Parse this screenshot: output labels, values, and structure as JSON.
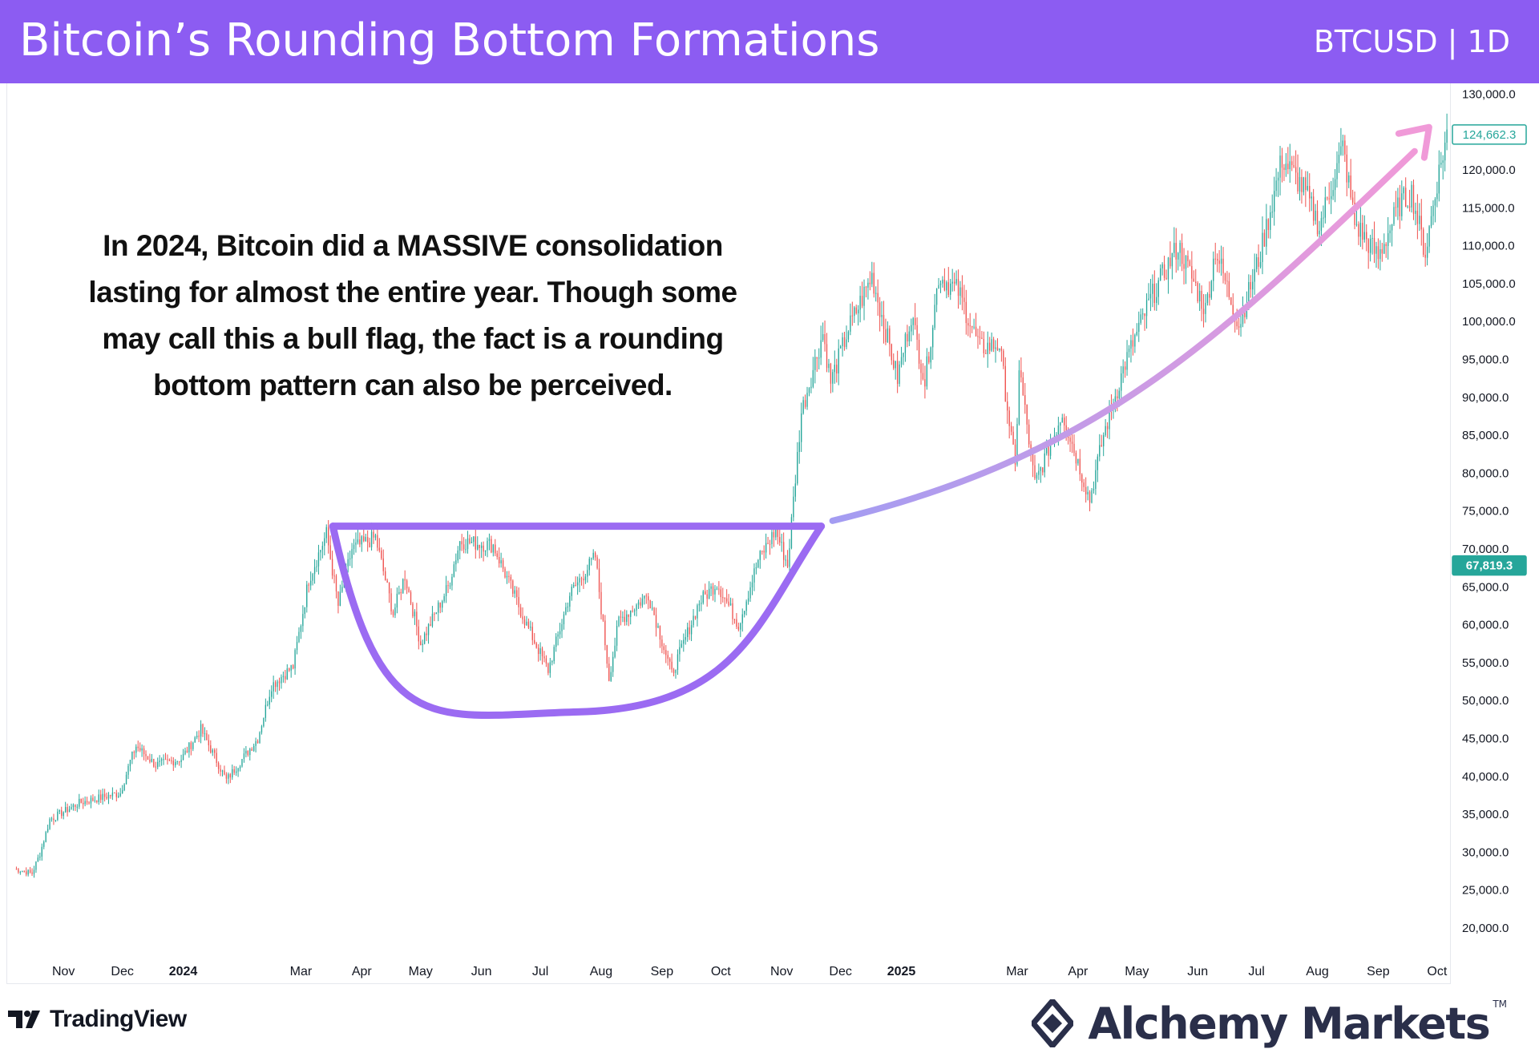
{
  "header": {
    "title": "Bitcoin’s Rounding Bottom Formations",
    "ticker": "BTCUSD | 1D"
  },
  "annotation": {
    "text": "In 2024, Bitcoin did a MASSIVE consolidation lasting for almost the entire year. Though some may call this a bull flag, the fact is a rounding bottom pattern can also be perceived."
  },
  "footer": {
    "tradingview_label": "TradingView",
    "brand_label": "Alchemy Markets",
    "brand_tm": "TM"
  },
  "colors": {
    "header_bg": "#8c5cf2",
    "up_candle": "#26a69a",
    "down_candle": "#ef5350",
    "pattern_line": "#9b6bf2",
    "arrow_start": "#a39cf2",
    "arrow_end": "#f09ad8",
    "current_price_tag": "#26a69a",
    "pattern_price_tag": "#26a69a"
  },
  "chart_data": {
    "type": "candlestick",
    "title": "Bitcoin’s Rounding Bottom Formations",
    "symbol": "BTCUSD",
    "interval": "1D",
    "ylim": [
      17000,
      132000
    ],
    "y_ticks": [
      "130,000.0",
      "120,000.0",
      "115,000.0",
      "110,000.0",
      "105,000.0",
      "100,000.0",
      "95,000.0",
      "90,000.0",
      "85,000.0",
      "80,000.0",
      "75,000.0",
      "70,000.0",
      "65,000.0",
      "60,000.0",
      "55,000.0",
      "50,000.0",
      "45,000.0",
      "40,000.0",
      "35,000.0",
      "30,000.0",
      "25,000.0",
      "20,000.0"
    ],
    "y_tick_values": [
      130000,
      120000,
      115000,
      110000,
      105000,
      100000,
      95000,
      90000,
      85000,
      80000,
      75000,
      70000,
      65000,
      60000,
      55000,
      50000,
      45000,
      40000,
      35000,
      30000,
      25000,
      20000
    ],
    "x_ticks": [
      {
        "label": "Nov",
        "date": "2023-11-01",
        "bold": false
      },
      {
        "label": "Dec",
        "date": "2023-12-01",
        "bold": false
      },
      {
        "label": "2024",
        "date": "2024-01-01",
        "bold": true
      },
      {
        "label": "Mar",
        "date": "2024-03-01",
        "bold": false
      },
      {
        "label": "Apr",
        "date": "2024-04-01",
        "bold": false
      },
      {
        "label": "May",
        "date": "2024-05-01",
        "bold": false
      },
      {
        "label": "Jun",
        "date": "2024-06-01",
        "bold": false
      },
      {
        "label": "Jul",
        "date": "2024-07-01",
        "bold": false
      },
      {
        "label": "Aug",
        "date": "2024-08-01",
        "bold": false
      },
      {
        "label": "Sep",
        "date": "2024-09-01",
        "bold": false
      },
      {
        "label": "Oct",
        "date": "2024-10-01",
        "bold": false
      },
      {
        "label": "Nov",
        "date": "2024-11-01",
        "bold": false
      },
      {
        "label": "Dec",
        "date": "2024-12-01",
        "bold": false
      },
      {
        "label": "2025",
        "date": "2025-01-01",
        "bold": true
      },
      {
        "label": "Mar",
        "date": "2025-03-01",
        "bold": false
      },
      {
        "label": "Apr",
        "date": "2025-04-01",
        "bold": false
      },
      {
        "label": "May",
        "date": "2025-05-01",
        "bold": false
      },
      {
        "label": "Jun",
        "date": "2025-06-01",
        "bold": false
      },
      {
        "label": "Jul",
        "date": "2025-07-01",
        "bold": false
      },
      {
        "label": "Aug",
        "date": "2025-08-01",
        "bold": false
      },
      {
        "label": "Sep",
        "date": "2025-09-01",
        "bold": false
      },
      {
        "label": "Oct",
        "date": "2025-10-01",
        "bold": false
      }
    ],
    "x_range": [
      "2023-10-07",
      "2025-10-08"
    ],
    "price_path": [
      [
        "2023-10-07",
        27800
      ],
      [
        "2023-10-16",
        27200
      ],
      [
        "2023-10-20",
        29800
      ],
      [
        "2023-10-25",
        34300
      ],
      [
        "2023-11-09",
        36500
      ],
      [
        "2023-11-20",
        37200
      ],
      [
        "2023-11-30",
        37800
      ],
      [
        "2023-12-05",
        42000
      ],
      [
        "2023-12-08",
        44000
      ],
      [
        "2023-12-18",
        41500
      ],
      [
        "2023-12-31",
        42300
      ],
      [
        "2024-01-10",
        46200
      ],
      [
        "2024-01-23",
        39500
      ],
      [
        "2024-02-08",
        45000
      ],
      [
        "2024-02-15",
        52000
      ],
      [
        "2024-02-26",
        54500
      ],
      [
        "2024-03-05",
        66000
      ],
      [
        "2024-03-14",
        72000
      ],
      [
        "2024-03-20",
        62500
      ],
      [
        "2024-03-27",
        70000
      ],
      [
        "2024-04-08",
        71500
      ],
      [
        "2024-04-17",
        61500
      ],
      [
        "2024-04-23",
        66500
      ],
      [
        "2024-05-01",
        57500
      ],
      [
        "2024-05-15",
        65000
      ],
      [
        "2024-05-21",
        71000
      ],
      [
        "2024-06-07",
        70500
      ],
      [
        "2024-06-24",
        60000
      ],
      [
        "2024-07-05",
        54000
      ],
      [
        "2024-07-16",
        64000
      ],
      [
        "2024-07-29",
        69000
      ],
      [
        "2024-08-05",
        53000
      ],
      [
        "2024-08-10",
        60500
      ],
      [
        "2024-08-25",
        64000
      ],
      [
        "2024-09-06",
        53500
      ],
      [
        "2024-09-20",
        63000
      ],
      [
        "2024-09-29",
        65500
      ],
      [
        "2024-10-10",
        60000
      ],
      [
        "2024-10-20",
        68500
      ],
      [
        "2024-10-29",
        72500
      ],
      [
        "2024-11-04",
        67800
      ],
      [
        "2024-11-11",
        88000
      ],
      [
        "2024-11-22",
        98500
      ],
      [
        "2024-11-26",
        92000
      ],
      [
        "2024-12-05",
        99000
      ],
      [
        "2024-12-17",
        106000
      ],
      [
        "2024-12-30",
        92500
      ],
      [
        "2025-01-06",
        101000
      ],
      [
        "2025-01-13",
        92000
      ],
      [
        "2025-01-20",
        106000
      ],
      [
        "2025-01-30",
        104000
      ],
      [
        "2025-02-10",
        96500
      ],
      [
        "2025-02-20",
        97000
      ],
      [
        "2025-02-28",
        80500
      ],
      [
        "2025-03-02",
        94000
      ],
      [
        "2025-03-10",
        78500
      ],
      [
        "2025-03-24",
        88000
      ],
      [
        "2025-04-07",
        76500
      ],
      [
        "2025-04-14",
        85000
      ],
      [
        "2025-04-25",
        94500
      ],
      [
        "2025-05-08",
        103000
      ],
      [
        "2025-05-22",
        110000
      ],
      [
        "2025-06-05",
        101500
      ],
      [
        "2025-06-10",
        109500
      ],
      [
        "2025-06-22",
        99500
      ],
      [
        "2025-07-03",
        109000
      ],
      [
        "2025-07-14",
        121500
      ],
      [
        "2025-07-25",
        117500
      ],
      [
        "2025-08-02",
        112500
      ],
      [
        "2025-08-14",
        123000
      ],
      [
        "2025-08-20",
        113000
      ],
      [
        "2025-09-01",
        108500
      ],
      [
        "2025-09-12",
        115500
      ],
      [
        "2025-09-18",
        117000
      ],
      [
        "2025-09-25",
        109000
      ],
      [
        "2025-10-01",
        118500
      ],
      [
        "2025-10-06",
        124662
      ]
    ],
    "price_labels": [
      {
        "text": "124,662.3",
        "value": 124662.3,
        "style": "outline"
      },
      {
        "text": "67,819.3",
        "value": 67819.3,
        "style": "filled"
      }
    ],
    "annotations": [
      {
        "kind": "rounding-bottom",
        "neckline_value": 73000,
        "from": "2024-03-14",
        "to": "2024-11-22",
        "bottom_value": 48500,
        "bottom_date": "2024-07-20"
      },
      {
        "kind": "curved-arrow",
        "from": [
          "2024-11-22",
          73500
        ],
        "to": [
          "2025-10-01",
          125000
        ]
      }
    ]
  }
}
